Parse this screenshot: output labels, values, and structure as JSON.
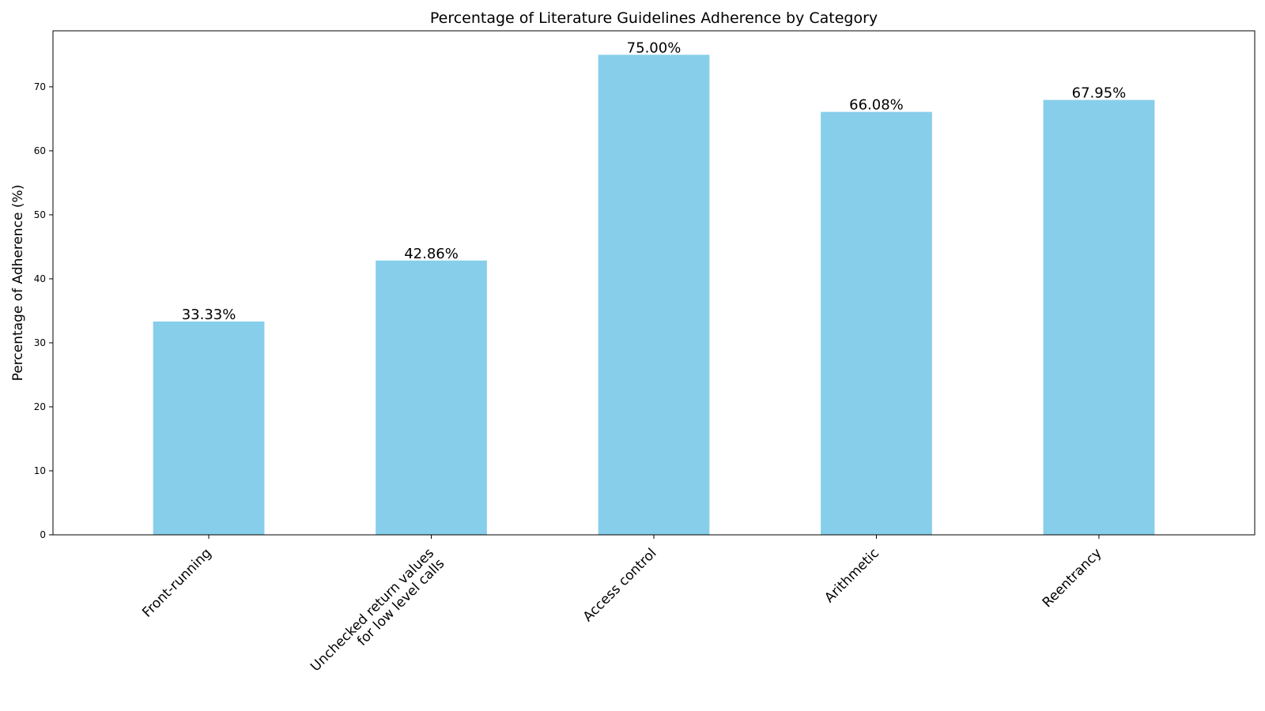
{
  "chart_data": {
    "type": "bar",
    "title": "Percentage of Literature Guidelines Adherence by Category",
    "xlabel": "",
    "ylabel": "Percentage of Adherence (%)",
    "categories": [
      "Front-running",
      "Unchecked return values\nfor low level calls",
      "Access control",
      "Arithmetic",
      "Reentrancy"
    ],
    "values": [
      33.33,
      42.86,
      75.0,
      66.08,
      67.95
    ],
    "data_labels": [
      "33.33%",
      "42.86%",
      "75.00%",
      "66.08%",
      "67.95%"
    ],
    "ylim": [
      0,
      78.75
    ],
    "yticks": [
      0,
      10,
      20,
      30,
      40,
      50,
      60,
      70
    ],
    "bar_color": "#87CEEB",
    "grid": false,
    "legend": "none"
  }
}
